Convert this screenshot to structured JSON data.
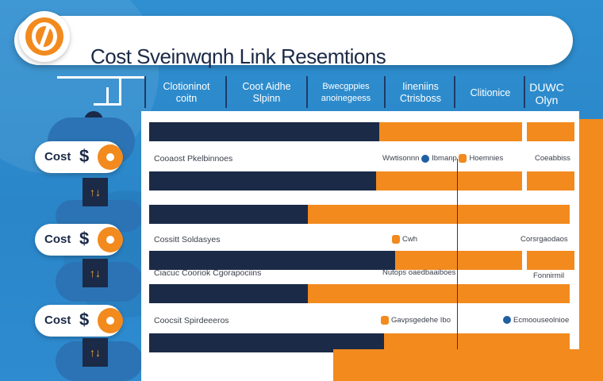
{
  "title": "Cost Sveinwqnh Link Resemtions",
  "header_columns": [
    {
      "label": "Clotioninot\ncoitn"
    },
    {
      "label": "Coot Aidhe\nSlpinn"
    },
    {
      "label": "Bwecgppies\nanoinegeess"
    },
    {
      "label": "Iineniins\nCtrisboss"
    },
    {
      "label": "Clitionice"
    },
    {
      "label": "DUWC\nOlyn"
    }
  ],
  "side_items": [
    {
      "label": "Cost",
      "symbol": "$",
      "mini": "↑↓"
    },
    {
      "label": "Cost",
      "symbol": "$",
      "mini": "↑↓"
    },
    {
      "label": "Cost",
      "symbol": "$",
      "mini": "↑↓"
    }
  ],
  "rows": [
    {
      "left": "Cooaost Pkelbinnoes",
      "mid": "Wwtisonnn",
      "mid2": "Ibmanp",
      "mid3": "Hoemnies",
      "right": "Coeabbiss"
    },
    {
      "left": "Cossitt Soldasyes",
      "mid": "Cwh",
      "right": "Corsrgaodaos"
    },
    {
      "left": "Ciacuc Cooriok Cgorapociins",
      "mid": "Nutops oaedbaaiboes",
      "right": "Fonnirmil"
    },
    {
      "left": "Coocsit Spirdeeeros",
      "mid": "Gavpsgedehe Ibo",
      "right": "Ecmoouseolnioe"
    }
  ],
  "colors": {
    "navy": "#1b2a47",
    "orange": "#f28a1e",
    "blue": "#2f8fd0"
  }
}
